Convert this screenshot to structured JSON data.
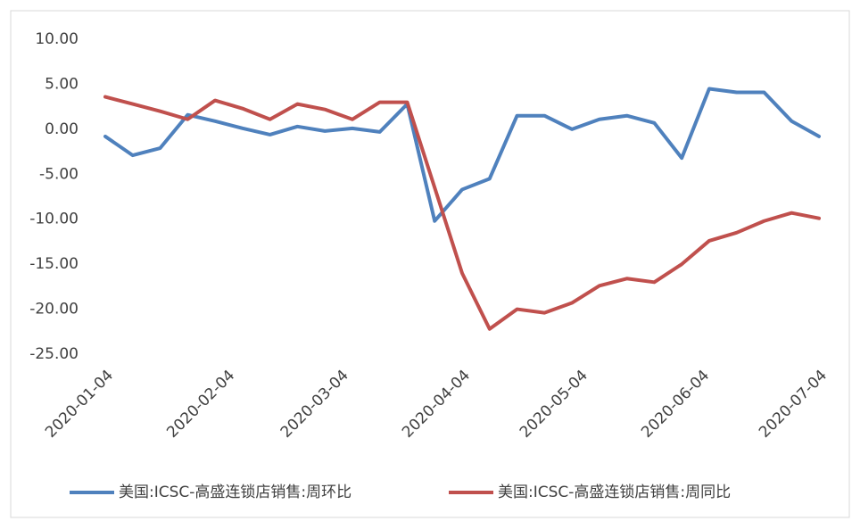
{
  "chart_data": {
    "type": "line",
    "x": [
      "2020-01-04",
      "2020-01-11",
      "2020-01-18",
      "2020-01-25",
      "2020-02-01",
      "2020-02-08",
      "2020-02-15",
      "2020-02-22",
      "2020-02-29",
      "2020-03-07",
      "2020-03-14",
      "2020-03-21",
      "2020-03-28",
      "2020-04-04",
      "2020-04-11",
      "2020-04-18",
      "2020-04-25",
      "2020-05-02",
      "2020-05-09",
      "2020-05-16",
      "2020-05-23",
      "2020-05-30",
      "2020-06-06",
      "2020-06-13",
      "2020-06-20",
      "2020-06-27",
      "2020-07-04"
    ],
    "series": [
      {
        "name": "美国:ICSC-高盛连锁店销售:周环比",
        "color": "#4f81bd",
        "values": [
          -0.8,
          -2.9,
          -2.1,
          1.6,
          0.9,
          0.1,
          -0.6,
          0.3,
          -0.2,
          0.1,
          -0.3,
          2.8,
          -10.2,
          -6.7,
          -5.5,
          1.5,
          1.5,
          0.0,
          1.1,
          1.5,
          0.7,
          -3.2,
          4.5,
          4.1,
          4.1,
          0.9,
          -0.8
        ]
      },
      {
        "name": "美国:ICSC-高盛连锁店销售:周同比",
        "color": "#c0504d",
        "values": [
          3.6,
          2.8,
          2.0,
          1.1,
          3.2,
          2.3,
          1.1,
          2.8,
          2.2,
          1.1,
          3.0,
          3.0,
          -6.5,
          -16.0,
          -22.2,
          -20.0,
          -20.4,
          -19.3,
          -17.4,
          -16.6,
          -17.0,
          -15.0,
          -12.4,
          -11.5,
          -10.2,
          -9.3,
          -9.9
        ]
      }
    ],
    "ylim": [
      -25,
      10
    ],
    "yticks": [
      {
        "value": -25,
        "label": "-25.00"
      },
      {
        "value": -20,
        "label": "-20.00"
      },
      {
        "value": -15,
        "label": "-15.00"
      },
      {
        "value": -10,
        "label": "-10.00"
      },
      {
        "value": -5,
        "label": "-5.00"
      },
      {
        "value": 0,
        "label": "0.00"
      },
      {
        "value": 5,
        "label": "5.00"
      },
      {
        "value": 10,
        "label": "10.00"
      }
    ],
    "xticks": [
      "2020-01-04",
      "2020-02-04",
      "2020-03-04",
      "2020-04-04",
      "2020-05-04",
      "2020-06-04",
      "2020-07-04"
    ],
    "legend": "bottom"
  }
}
